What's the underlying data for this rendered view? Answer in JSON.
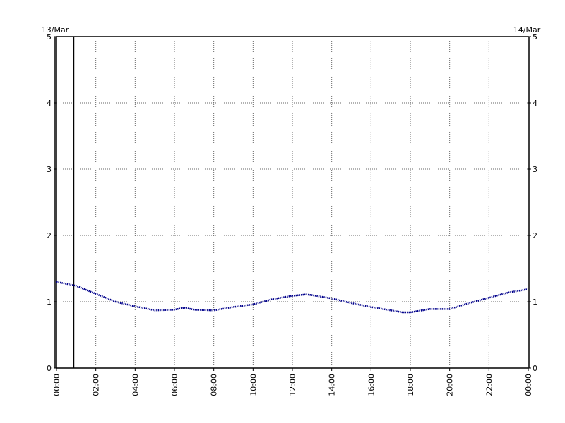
{
  "chart_data": {
    "type": "line",
    "date_left": "13/Mar",
    "date_right": "14/Mar",
    "x": [
      0,
      1,
      2,
      3,
      4,
      5,
      6,
      6.5,
      7,
      8,
      9,
      10,
      11,
      12,
      12.7,
      13,
      14,
      15,
      16,
      17,
      17.6,
      18,
      19,
      20,
      21,
      22,
      23,
      24
    ],
    "series": [
      {
        "color": "#00008b",
        "values": [
          1.3,
          1.24,
          1.12,
          1.0,
          0.93,
          0.87,
          0.88,
          0.91,
          0.88,
          0.87,
          0.92,
          0.96,
          1.04,
          1.09,
          1.11,
          1.1,
          1.05,
          0.98,
          0.92,
          0.87,
          0.84,
          0.84,
          0.89,
          0.89,
          0.98,
          1.06,
          1.14,
          1.19
        ]
      }
    ],
    "xlim": [
      0,
      24
    ],
    "xticks": [
      {
        "value": 0,
        "label": "00:00"
      },
      {
        "value": 2,
        "label": "02:00"
      },
      {
        "value": 4,
        "label": "04:00"
      },
      {
        "value": 6,
        "label": "06:00"
      },
      {
        "value": 8,
        "label": "08:00"
      },
      {
        "value": 10,
        "label": "10:00"
      },
      {
        "value": 12,
        "label": "12:00"
      },
      {
        "value": 14,
        "label": "14:00"
      },
      {
        "value": 16,
        "label": "16:00"
      },
      {
        "value": 18,
        "label": "18:00"
      },
      {
        "value": 20,
        "label": "20:00"
      },
      {
        "value": 22,
        "label": "22:00"
      },
      {
        "value": 24,
        "label": "00:00"
      }
    ],
    "ylim": [
      0,
      5
    ],
    "yticks": [
      0,
      1,
      2,
      3,
      4,
      5
    ],
    "y2lim": [
      0,
      5
    ],
    "y2ticks": [
      0,
      1,
      2,
      3,
      4,
      5
    ],
    "vline_x": 0.87,
    "grid": true
  }
}
